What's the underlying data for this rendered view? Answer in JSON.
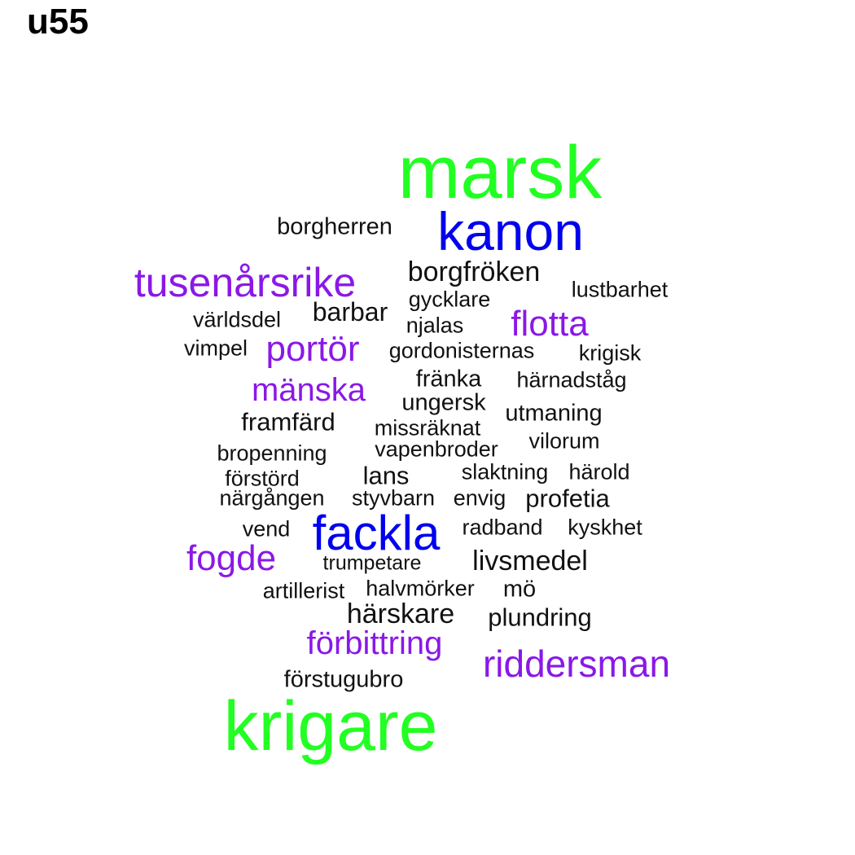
{
  "title": "u55",
  "colors": {
    "green": "#22ff22",
    "blue": "#0000ee",
    "purple": "#8a18e6",
    "black": "#111111"
  },
  "words": [
    {
      "text": "marsk",
      "color": "green"
    },
    {
      "text": "kanon",
      "color": "blue"
    },
    {
      "text": "borgherren",
      "color": "black"
    },
    {
      "text": "tusenårsrike",
      "color": "purple"
    },
    {
      "text": "borgfröken",
      "color": "black"
    },
    {
      "text": "lustbarhet",
      "color": "black"
    },
    {
      "text": "gycklare",
      "color": "black"
    },
    {
      "text": "barbar",
      "color": "black"
    },
    {
      "text": "världsdel",
      "color": "black"
    },
    {
      "text": "flotta",
      "color": "purple"
    },
    {
      "text": "njalas",
      "color": "black"
    },
    {
      "text": "vimpel",
      "color": "black"
    },
    {
      "text": "portör",
      "color": "purple"
    },
    {
      "text": "gordonisternas",
      "color": "black"
    },
    {
      "text": "krigisk",
      "color": "black"
    },
    {
      "text": "fränka",
      "color": "black"
    },
    {
      "text": "härnadståg",
      "color": "black"
    },
    {
      "text": "mänska",
      "color": "purple"
    },
    {
      "text": "ungersk",
      "color": "black"
    },
    {
      "text": "framfärd",
      "color": "black"
    },
    {
      "text": "utmaning",
      "color": "black"
    },
    {
      "text": "missräknat",
      "color": "black"
    },
    {
      "text": "vilorum",
      "color": "black"
    },
    {
      "text": "bropenning",
      "color": "black"
    },
    {
      "text": "vapenbroder",
      "color": "black"
    },
    {
      "text": "förstörd",
      "color": "black"
    },
    {
      "text": "lans",
      "color": "black"
    },
    {
      "text": "slaktning",
      "color": "black"
    },
    {
      "text": "härold",
      "color": "black"
    },
    {
      "text": "närgången",
      "color": "black"
    },
    {
      "text": "styvbarn",
      "color": "black"
    },
    {
      "text": "envig",
      "color": "black"
    },
    {
      "text": "profetia",
      "color": "black"
    },
    {
      "text": "vend",
      "color": "black"
    },
    {
      "text": "fackla",
      "color": "blue"
    },
    {
      "text": "radband",
      "color": "black"
    },
    {
      "text": "kyskhet",
      "color": "black"
    },
    {
      "text": "fogde",
      "color": "purple"
    },
    {
      "text": "trumpetare",
      "color": "black"
    },
    {
      "text": "livsmedel",
      "color": "black"
    },
    {
      "text": "artillerist",
      "color": "black"
    },
    {
      "text": "halvmörker",
      "color": "black"
    },
    {
      "text": "mö",
      "color": "black"
    },
    {
      "text": "härskare",
      "color": "black"
    },
    {
      "text": "plundring",
      "color": "black"
    },
    {
      "text": "förbittring",
      "color": "purple"
    },
    {
      "text": "riddersman",
      "color": "purple"
    },
    {
      "text": "förstugubro",
      "color": "black"
    },
    {
      "text": "krigare",
      "color": "green"
    }
  ]
}
